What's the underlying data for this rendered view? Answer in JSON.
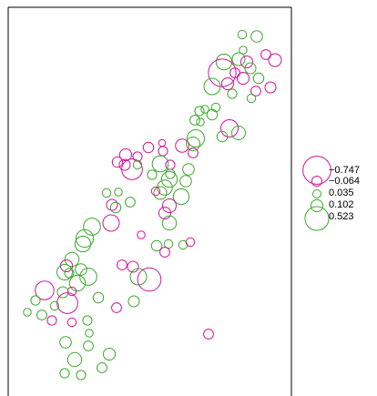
{
  "chart_data": {
    "type": "scatter",
    "title": "",
    "xlabel": "",
    "ylabel": "",
    "axes": "none",
    "plot_frame": "left, top and right box lines; bottom edge open",
    "encoding": "circle size proportional to magnitude of value; magenta = negative, green = positive",
    "colors": {
      "negative": "#d4119a",
      "positive": "#3aa828"
    },
    "legend": {
      "placement": "right",
      "entries": [
        {
          "label": "−0.747",
          "value": -0.747
        },
        {
          "label": "−0.064",
          "value": -0.064
        },
        {
          "label": "0.035",
          "value": 0.035
        },
        {
          "label": "0.102",
          "value": 0.102
        },
        {
          "label": "0.523",
          "value": 0.523
        }
      ]
    },
    "points": [
      [
        266,
        38,
        0.04
      ],
      [
        282,
        40,
        0.09
      ],
      [
        267,
        55,
        0.03
      ],
      [
        246,
        68,
        0.2
      ],
      [
        262,
        65,
        0.12
      ],
      [
        271,
        68,
        -0.1
      ],
      [
        292,
        60,
        -0.06
      ],
      [
        302,
        66,
        -0.12
      ],
      [
        275,
        75,
        0.08
      ],
      [
        244,
        80,
        -0.73
      ],
      [
        258,
        80,
        -0.06
      ],
      [
        267,
        86,
        -0.1
      ],
      [
        250,
        92,
        -0.1
      ],
      [
        233,
        95,
        0.22
      ],
      [
        284,
        86,
        0.07
      ],
      [
        255,
        103,
        0.05
      ],
      [
        297,
        96,
        -0.08
      ],
      [
        281,
        100,
        -0.06
      ],
      [
        276,
        108,
        0.04
      ],
      [
        237,
        118,
        0.04
      ],
      [
        233,
        126,
        0.07
      ],
      [
        219,
        122,
        0.05
      ],
      [
        225,
        120,
        0.03
      ],
      [
        214,
        132,
        0.06
      ],
      [
        220,
        134,
        0.03
      ],
      [
        252,
        141,
        -0.25
      ],
      [
        262,
        146,
        0.14
      ],
      [
        244,
        150,
        0.07
      ],
      [
        215,
        152,
        0.25
      ],
      [
        200,
        160,
        -0.13
      ],
      [
        212,
        158,
        0.14
      ],
      [
        163,
        162,
        -0.07
      ],
      [
        178,
        157,
        -0.02
      ],
      [
        179,
        166,
        -0.05
      ],
      [
        138,
        170,
        -0.1
      ],
      [
        151,
        172,
        -0.05
      ],
      [
        129,
        178,
        -0.07
      ],
      [
        137,
        181,
        -0.08
      ],
      [
        187,
        181,
        -0.05
      ],
      [
        176,
        180,
        0.21
      ],
      [
        145,
        186,
        -0.38
      ],
      [
        151,
        181,
        0.04
      ],
      [
        212,
        168,
        -0.06
      ],
      [
        187,
        191,
        0.05
      ],
      [
        207,
        186,
        0.09
      ],
      [
        167,
        192,
        0.05
      ],
      [
        186,
        197,
        0.2
      ],
      [
        181,
        206,
        0.18
      ],
      [
        176,
        212,
        0.12
      ],
      [
        171,
        210,
        -0.04
      ],
      [
        204,
        199,
        0.09
      ],
      [
        199,
        216,
        0.2
      ],
      [
        130,
        211,
        0.03
      ],
      [
        117,
        212,
        0.04
      ],
      [
        123,
        225,
        -0.08
      ],
      [
        143,
        222,
        0.06
      ],
      [
        186,
        226,
        -0.14
      ],
      [
        181,
        234,
        -0.1
      ],
      [
        127,
        228,
        0.07
      ],
      [
        186,
        245,
        0.15
      ],
      [
        122,
        245,
        -0.22
      ],
      [
        101,
        249,
        0.24
      ],
      [
        93,
        262,
        0.26
      ],
      [
        91,
        268,
        0.2
      ],
      [
        155,
        258,
        -0.03
      ],
      [
        172,
        270,
        0.07
      ],
      [
        185,
        268,
        0.04
      ],
      [
        201,
        269,
        0.04
      ],
      [
        209,
        266,
        -0.04
      ],
      [
        181,
        277,
        -0.06
      ],
      [
        79,
        285,
        0.15
      ],
      [
        73,
        292,
        -0.1
      ],
      [
        76,
        300,
        0.05
      ],
      [
        134,
        291,
        -0.06
      ],
      [
        71,
        299,
        0.19
      ],
      [
        89,
        296,
        0.09
      ],
      [
        97,
        304,
        0.24
      ],
      [
        146,
        293,
        -0.08
      ],
      [
        152,
        304,
        0.22
      ],
      [
        164,
        307,
        -0.5
      ],
      [
        85,
        311,
        0.2
      ],
      [
        79,
        320,
        -0.04
      ],
      [
        49,
        319,
        -0.3
      ],
      [
        69,
        321,
        0.08
      ],
      [
        39,
        330,
        0.05
      ],
      [
        74,
        333,
        -0.38
      ],
      [
        108,
        327,
        0.07
      ],
      [
        147,
        331,
        0.08
      ],
      [
        128,
        338,
        -0.06
      ],
      [
        60,
        336,
        0.04
      ],
      [
        30,
        343,
        0.03
      ],
      [
        46,
        346,
        0.06
      ],
      [
        57,
        352,
        -0.05
      ],
      [
        79,
        354,
        -0.04
      ],
      [
        96,
        352,
        0.05
      ],
      [
        229,
        367,
        -0.06
      ],
      [
        98,
        366,
        0.03
      ],
      [
        72,
        376,
        0.09
      ],
      [
        97,
        380,
        0.06
      ],
      [
        120,
        389,
        0.1
      ],
      [
        82,
        395,
        0.15
      ],
      [
        112,
        404,
        0.06
      ],
      [
        71,
        410,
        0.05
      ],
      [
        89,
        412,
        0.05
      ]
    ]
  }
}
